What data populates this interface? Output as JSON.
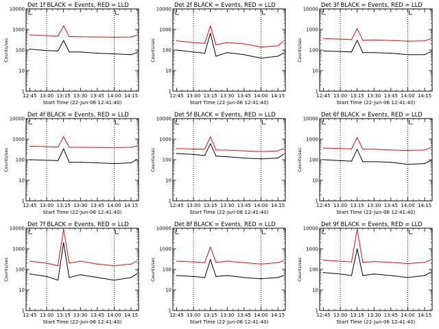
{
  "figure": {
    "x_tick_labels": [
      "12:45",
      "13:00",
      "13:15",
      "13:30",
      "13:45",
      "14:00",
      "14:15"
    ],
    "y_tick_labels": [
      "1",
      "10",
      "100",
      "1000",
      "10000"
    ],
    "colors": {
      "events": "#000000",
      "lld": "#ff0000",
      "axis": "#000000",
      "background": "#ffffff"
    }
  },
  "chart_data": [
    {
      "type": "line",
      "title": "Det 1f BLACK = Events, RED = LLD",
      "xlabel": "Start Time (22-Jun-06 12:41:40)",
      "ylabel": "Counts/sec",
      "x_unit": "time (HH:MM, 22-Jun-06)",
      "xlim": [
        "12:41:40",
        "14:21:40"
      ],
      "ylim": [
        1,
        10000
      ],
      "y_scale": "log",
      "marker_times": [
        "13:00",
        "14:00"
      ],
      "x": [
        "12:45",
        "13:00",
        "13:10",
        "13:15",
        "13:20",
        "13:30",
        "13:45",
        "14:00",
        "14:15",
        "14:20"
      ],
      "series": [
        {
          "name": "Events",
          "color": "black",
          "values": [
            110,
            95,
            90,
            290,
            80,
            80,
            70,
            65,
            60,
            75
          ]
        },
        {
          "name": "LLD",
          "color": "red",
          "values": [
            540,
            500,
            470,
            1500,
            450,
            440,
            430,
            420,
            430,
            520
          ]
        }
      ]
    },
    {
      "type": "line",
      "title": "Det 2f BLACK = Events, RED = LLD",
      "xlabel": "Start Time (22-Jun-06 12:41:40)",
      "ylabel": "Counts/sec",
      "x_unit": "time (HH:MM, 22-Jun-06)",
      "xlim": [
        "12:41:40",
        "14:21:40"
      ],
      "ylim": [
        1,
        10000
      ],
      "y_scale": "log",
      "marker_times": [
        "13:00",
        "14:00"
      ],
      "x": [
        "12:45",
        "13:00",
        "13:10",
        "13:15",
        "13:20",
        "13:30",
        "13:45",
        "14:00",
        "14:15",
        "14:20"
      ],
      "series": [
        {
          "name": "Events",
          "color": "black",
          "values": [
            100,
            80,
            70,
            650,
            50,
            75,
            60,
            40,
            50,
            70
          ]
        },
        {
          "name": "LLD",
          "color": "red",
          "values": [
            280,
            230,
            210,
            1500,
            180,
            230,
            200,
            140,
            160,
            270
          ]
        }
      ]
    },
    {
      "type": "line",
      "title": "Det 3f BLACK = Events, RED = LLD",
      "xlabel": "Start Time (22-Jun-06 12:41:40)",
      "ylabel": "Counts/sec",
      "x_unit": "time (HH:MM, 22-Jun-06)",
      "xlim": [
        "12:41:40",
        "14:21:40"
      ],
      "ylim": [
        1,
        10000
      ],
      "y_scale": "log",
      "marker_times": [
        "13:00",
        "14:00"
      ],
      "x": [
        "12:45",
        "13:00",
        "13:10",
        "13:15",
        "13:20",
        "13:30",
        "13:45",
        "14:00",
        "14:15",
        "14:20"
      ],
      "series": [
        {
          "name": "Events",
          "color": "black",
          "values": [
            90,
            85,
            80,
            300,
            75,
            75,
            70,
            60,
            60,
            80
          ]
        },
        {
          "name": "LLD",
          "color": "red",
          "values": [
            360,
            340,
            320,
            1100,
            300,
            310,
            290,
            270,
            280,
            350
          ]
        }
      ]
    },
    {
      "type": "line",
      "title": "Det 4f BLACK = Events, RED = LLD",
      "xlabel": "Start Time (22-Jun-06 12:41:40)",
      "ylabel": "Counts/sec",
      "x_unit": "time (HH:MM, 22-Jun-06)",
      "xlim": [
        "12:41:40",
        "14:21:40"
      ],
      "ylim": [
        1,
        10000
      ],
      "y_scale": "log",
      "marker_times": [
        "13:00",
        "14:00"
      ],
      "x": [
        "12:45",
        "13:00",
        "13:10",
        "13:15",
        "13:20",
        "13:30",
        "13:45",
        "14:00",
        "14:15",
        "14:20"
      ],
      "series": [
        {
          "name": "Events",
          "color": "black",
          "values": [
            100,
            95,
            90,
            340,
            75,
            75,
            70,
            65,
            70,
            100
          ]
        },
        {
          "name": "LLD",
          "color": "red",
          "values": [
            450,
            430,
            410,
            1300,
            400,
            400,
            390,
            380,
            400,
            460
          ]
        }
      ]
    },
    {
      "type": "line",
      "title": "Det 5f BLACK = Events, RED = LLD",
      "xlabel": "Start Time (22-Jun-06 12:41:40)",
      "ylabel": "Counts/sec",
      "x_unit": "time (HH:MM, 22-Jun-06)",
      "xlim": [
        "12:41:40",
        "14:21:40"
      ],
      "ylim": [
        1,
        10000
      ],
      "y_scale": "log",
      "marker_times": [
        "13:00",
        "14:00"
      ],
      "x": [
        "12:45",
        "13:00",
        "13:10",
        "13:15",
        "13:20",
        "13:30",
        "13:45",
        "14:00",
        "14:15",
        "14:20"
      ],
      "series": [
        {
          "name": "Events",
          "color": "black",
          "values": [
            200,
            180,
            160,
            600,
            150,
            140,
            120,
            110,
            120,
            180
          ]
        },
        {
          "name": "LLD",
          "color": "red",
          "values": [
            350,
            330,
            320,
            1300,
            300,
            290,
            270,
            250,
            270,
            350
          ]
        }
      ]
    },
    {
      "type": "line",
      "title": "Det 6f BLACK = Events, RED = LLD",
      "xlabel": "Start Time (22-Jun-06 12:41:40)",
      "ylabel": "Counts/sec",
      "x_unit": "time (HH:MM, 22-Jun-06)",
      "xlim": [
        "12:41:40",
        "14:21:40"
      ],
      "ylim": [
        1,
        10000
      ],
      "y_scale": "log",
      "marker_times": [
        "13:00",
        "14:00"
      ],
      "x": [
        "12:45",
        "13:00",
        "13:10",
        "13:15",
        "13:20",
        "13:30",
        "13:45",
        "14:00",
        "14:15",
        "14:20"
      ],
      "series": [
        {
          "name": "Events",
          "color": "black",
          "values": [
            100,
            90,
            85,
            320,
            80,
            80,
            75,
            60,
            65,
            90
          ]
        },
        {
          "name": "LLD",
          "color": "red",
          "values": [
            370,
            350,
            330,
            1200,
            320,
            320,
            300,
            280,
            300,
            380
          ]
        }
      ]
    },
    {
      "type": "line",
      "title": "Det 7f BLACK = Events, RED = LLD",
      "xlabel": "Start Time (22-Jun-06 12:41:40)",
      "ylabel": "Counts/sec",
      "x_unit": "time (HH:MM, 22-Jun-06)",
      "xlim": [
        "12:41:40",
        "14:21:40"
      ],
      "ylim": [
        1,
        10000
      ],
      "y_scale": "log",
      "marker_times": [
        "13:00",
        "14:00"
      ],
      "x": [
        "12:45",
        "13:00",
        "13:10",
        "13:15",
        "13:20",
        "13:30",
        "13:45",
        "14:00",
        "14:15",
        "14:20"
      ],
      "series": [
        {
          "name": "Events",
          "color": "black",
          "values": [
            60,
            45,
            30,
            2000,
            40,
            55,
            40,
            30,
            40,
            60
          ]
        },
        {
          "name": "LLD",
          "color": "red",
          "values": [
            250,
            200,
            150,
            9000,
            200,
            250,
            180,
            150,
            180,
            250
          ]
        }
      ]
    },
    {
      "type": "line",
      "title": "Det 8f BLACK = Events, RED = LLD",
      "xlabel": "Start Time (22-Jun-06 12:41:40)",
      "ylabel": "Counts/sec",
      "x_unit": "time (HH:MM, 22-Jun-06)",
      "xlim": [
        "12:41:40",
        "14:21:40"
      ],
      "ylim": [
        1,
        10000
      ],
      "y_scale": "log",
      "marker_times": [
        "13:00",
        "14:00"
      ],
      "x": [
        "12:45",
        "13:00",
        "13:10",
        "13:15",
        "13:20",
        "13:30",
        "13:45",
        "14:00",
        "14:15",
        "14:20"
      ],
      "series": [
        {
          "name": "Events",
          "color": "black",
          "values": [
            50,
            45,
            40,
            300,
            45,
            50,
            40,
            35,
            40,
            50
          ]
        },
        {
          "name": "LLD",
          "color": "red",
          "values": [
            250,
            230,
            210,
            1200,
            220,
            250,
            210,
            180,
            210,
            260
          ]
        }
      ]
    },
    {
      "type": "line",
      "title": "Det 9f BLACK = Events, RED = LLD",
      "xlabel": "Start Time (22-Jun-06 12:41:40)",
      "ylabel": "Counts/sec",
      "x_unit": "time (HH:MM, 22-Jun-06)",
      "xlim": [
        "12:41:40",
        "14:21:40"
      ],
      "ylim": [
        1,
        10000
      ],
      "y_scale": "log",
      "marker_times": [
        "13:00",
        "14:00"
      ],
      "x": [
        "12:45",
        "13:00",
        "13:10",
        "13:15",
        "13:20",
        "13:30",
        "13:45",
        "14:00",
        "14:15",
        "14:20"
      ],
      "series": [
        {
          "name": "Events",
          "color": "black",
          "values": [
            70,
            60,
            50,
            1000,
            50,
            60,
            50,
            40,
            50,
            70
          ]
        },
        {
          "name": "LLD",
          "color": "red",
          "values": [
            280,
            250,
            230,
            9000,
            220,
            240,
            220,
            190,
            220,
            280
          ]
        }
      ]
    }
  ]
}
